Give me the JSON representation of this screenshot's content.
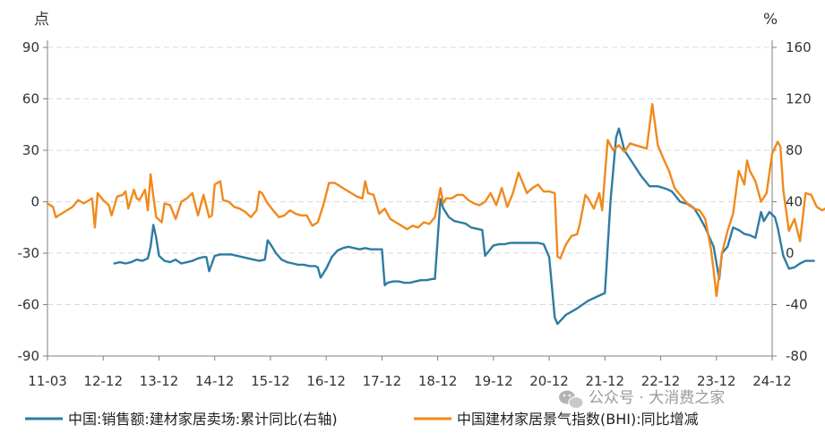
{
  "watermark": "公众号 · 大消费之家",
  "chart_data": {
    "type": "line",
    "left_axis": {
      "unit": "点",
      "ylim": [
        -90,
        90
      ],
      "ticks": [
        90,
        60,
        30,
        0,
        -30,
        -60,
        -90
      ]
    },
    "right_axis": {
      "unit": "%",
      "ylim": [
        -80,
        160
      ],
      "ticks": [
        160,
        120,
        80,
        40,
        0,
        -40,
        -80
      ]
    },
    "x_ticks": [
      "11-03",
      "12-12",
      "13-12",
      "14-12",
      "15-12",
      "16-12",
      "17-12",
      "18-12",
      "19-12",
      "20-12",
      "21-12",
      "22-12",
      "23-12",
      "24-12"
    ],
    "grid": "horizontal dashed",
    "legend_position": "bottom",
    "series": [
      {
        "name": "中国:销售额:建材家居卖场:累计同比(右轴)",
        "axis": "right",
        "color": "#2e7ca3",
        "points": [
          [
            1.2,
            -8
          ],
          [
            1.3,
            -7
          ],
          [
            1.4,
            -8
          ],
          [
            1.5,
            -7
          ],
          [
            1.6,
            -5
          ],
          [
            1.7,
            -6
          ],
          [
            1.8,
            -4
          ],
          [
            1.85,
            5
          ],
          [
            1.9,
            22
          ],
          [
            1.95,
            12
          ],
          [
            2.0,
            -2
          ],
          [
            2.1,
            -6
          ],
          [
            2.2,
            -7
          ],
          [
            2.3,
            -5
          ],
          [
            2.4,
            -8
          ],
          [
            2.5,
            -7
          ],
          [
            2.6,
            -6
          ],
          [
            2.7,
            -4
          ],
          [
            2.8,
            -3
          ],
          [
            2.85,
            -3
          ],
          [
            2.9,
            -14
          ],
          [
            3.0,
            -2
          ],
          [
            3.1,
            -1
          ],
          [
            3.2,
            -1
          ],
          [
            3.3,
            -1
          ],
          [
            3.4,
            -2
          ],
          [
            3.5,
            -3
          ],
          [
            3.6,
            -4
          ],
          [
            3.7,
            -5
          ],
          [
            3.8,
            -6
          ],
          [
            3.9,
            -5
          ],
          [
            3.95,
            10
          ],
          [
            4.0,
            7
          ],
          [
            4.1,
            0
          ],
          [
            4.2,
            -5
          ],
          [
            4.3,
            -7
          ],
          [
            4.4,
            -8
          ],
          [
            4.5,
            -9
          ],
          [
            4.6,
            -9
          ],
          [
            4.7,
            -10
          ],
          [
            4.8,
            -10
          ],
          [
            4.85,
            -11
          ],
          [
            4.9,
            -19
          ],
          [
            5.0,
            -12
          ],
          [
            5.1,
            -3
          ],
          [
            5.2,
            2
          ],
          [
            5.3,
            4
          ],
          [
            5.4,
            5
          ],
          [
            5.5,
            4
          ],
          [
            5.6,
            3
          ],
          [
            5.7,
            4
          ],
          [
            5.8,
            3
          ],
          [
            5.9,
            3
          ],
          [
            6.0,
            3
          ],
          [
            6.05,
            -25
          ],
          [
            6.1,
            -23
          ],
          [
            6.2,
            -22
          ],
          [
            6.3,
            -22
          ],
          [
            6.4,
            -23
          ],
          [
            6.5,
            -23
          ],
          [
            6.6,
            -22
          ],
          [
            6.7,
            -21
          ],
          [
            6.8,
            -21
          ],
          [
            6.9,
            -20
          ],
          [
            6.95,
            -20
          ],
          [
            7.05,
            42
          ],
          [
            7.1,
            35
          ],
          [
            7.2,
            28
          ],
          [
            7.3,
            25
          ],
          [
            7.4,
            24
          ],
          [
            7.5,
            23
          ],
          [
            7.6,
            20
          ],
          [
            7.7,
            19
          ],
          [
            7.8,
            18
          ],
          [
            7.85,
            -2
          ],
          [
            8.0,
            6
          ],
          [
            8.1,
            7
          ],
          [
            8.2,
            7
          ],
          [
            8.3,
            8
          ],
          [
            8.4,
            8
          ],
          [
            8.5,
            8
          ],
          [
            8.6,
            8
          ],
          [
            8.7,
            8
          ],
          [
            8.8,
            8
          ],
          [
            8.9,
            7
          ],
          [
            9.0,
            -3
          ],
          [
            9.1,
            -50
          ],
          [
            9.15,
            -55
          ],
          [
            9.3,
            -48
          ],
          [
            9.5,
            -43
          ],
          [
            9.7,
            -37
          ],
          [
            9.9,
            -33
          ],
          [
            10.0,
            -31
          ],
          [
            10.1,
            40
          ],
          [
            10.2,
            90
          ],
          [
            10.25,
            97
          ],
          [
            10.35,
            80
          ],
          [
            10.5,
            70
          ],
          [
            10.65,
            60
          ],
          [
            10.8,
            52
          ],
          [
            10.95,
            52
          ],
          [
            11.1,
            50
          ],
          [
            11.2,
            48
          ],
          [
            11.35,
            40
          ],
          [
            11.5,
            38
          ],
          [
            11.6,
            35
          ],
          [
            11.7,
            28
          ],
          [
            11.8,
            20
          ],
          [
            11.9,
            10
          ],
          [
            11.95,
            5
          ],
          [
            12.05,
            -20
          ],
          [
            12.1,
            0
          ],
          [
            12.2,
            5
          ],
          [
            12.3,
            20
          ],
          [
            12.4,
            18
          ],
          [
            12.5,
            15
          ],
          [
            12.6,
            14
          ],
          [
            12.7,
            12
          ],
          [
            12.8,
            32
          ],
          [
            12.85,
            25
          ],
          [
            12.95,
            32
          ],
          [
            13.05,
            28
          ],
          [
            13.1,
            20
          ],
          [
            13.2,
            -2
          ],
          [
            13.3,
            -12
          ],
          [
            13.4,
            -11
          ],
          [
            13.5,
            -8
          ],
          [
            13.6,
            -6
          ],
          [
            13.7,
            -6
          ],
          [
            13.75,
            -6
          ]
        ]
      },
      {
        "name": "中国建材家居景气指数(BHI):同比增减",
        "axis": "left",
        "color": "#f08a1c",
        "points": [
          [
            0.0,
            -1
          ],
          [
            0.1,
            -3
          ],
          [
            0.15,
            -9
          ],
          [
            0.25,
            -7
          ],
          [
            0.35,
            -5
          ],
          [
            0.45,
            -3
          ],
          [
            0.55,
            1
          ],
          [
            0.65,
            -1
          ],
          [
            0.75,
            1
          ],
          [
            0.8,
            2
          ],
          [
            0.85,
            -15
          ],
          [
            0.9,
            5
          ],
          [
            1.0,
            1
          ],
          [
            1.1,
            -2
          ],
          [
            1.15,
            -8
          ],
          [
            1.25,
            3
          ],
          [
            1.35,
            4
          ],
          [
            1.4,
            6
          ],
          [
            1.45,
            -4
          ],
          [
            1.55,
            7
          ],
          [
            1.6,
            2
          ],
          [
            1.65,
            1
          ],
          [
            1.75,
            7
          ],
          [
            1.8,
            -5
          ],
          [
            1.85,
            16
          ],
          [
            1.9,
            3
          ],
          [
            1.95,
            -9
          ],
          [
            2.05,
            -12
          ],
          [
            2.1,
            -1
          ],
          [
            2.2,
            -2
          ],
          [
            2.3,
            -10
          ],
          [
            2.4,
            0
          ],
          [
            2.5,
            2
          ],
          [
            2.6,
            5
          ],
          [
            2.7,
            -8
          ],
          [
            2.8,
            4
          ],
          [
            2.9,
            -9
          ],
          [
            2.95,
            -8
          ],
          [
            3.0,
            10
          ],
          [
            3.1,
            12
          ],
          [
            3.15,
            1
          ],
          [
            3.25,
            0
          ],
          [
            3.35,
            -3
          ],
          [
            3.45,
            -4
          ],
          [
            3.55,
            -6
          ],
          [
            3.65,
            -9
          ],
          [
            3.75,
            -5
          ],
          [
            3.8,
            6
          ],
          [
            3.85,
            5
          ],
          [
            3.95,
            -1
          ],
          [
            4.05,
            -5
          ],
          [
            4.15,
            -9
          ],
          [
            4.25,
            -8
          ],
          [
            4.35,
            -5
          ],
          [
            4.45,
            -7
          ],
          [
            4.55,
            -8
          ],
          [
            4.65,
            -8
          ],
          [
            4.75,
            -14
          ],
          [
            4.85,
            -12
          ],
          [
            4.95,
            -2
          ],
          [
            5.05,
            11
          ],
          [
            5.15,
            11
          ],
          [
            5.25,
            9
          ],
          [
            5.35,
            7
          ],
          [
            5.45,
            5
          ],
          [
            5.55,
            3
          ],
          [
            5.65,
            2
          ],
          [
            5.7,
            12
          ],
          [
            5.75,
            5
          ],
          [
            5.85,
            4
          ],
          [
            5.95,
            -7
          ],
          [
            6.05,
            -4
          ],
          [
            6.15,
            -10
          ],
          [
            6.25,
            -12
          ],
          [
            6.35,
            -14
          ],
          [
            6.45,
            -16
          ],
          [
            6.55,
            -14
          ],
          [
            6.65,
            -15
          ],
          [
            6.75,
            -12
          ],
          [
            6.85,
            -13
          ],
          [
            6.95,
            -9
          ],
          [
            7.05,
            8
          ],
          [
            7.1,
            -1
          ],
          [
            7.15,
            2
          ],
          [
            7.25,
            2
          ],
          [
            7.35,
            4
          ],
          [
            7.45,
            4
          ],
          [
            7.55,
            1
          ],
          [
            7.65,
            -1
          ],
          [
            7.75,
            -2
          ],
          [
            7.85,
            0
          ],
          [
            7.95,
            5
          ],
          [
            8.05,
            -2
          ],
          [
            8.15,
            8
          ],
          [
            8.25,
            -3
          ],
          [
            8.35,
            5
          ],
          [
            8.45,
            17
          ],
          [
            8.55,
            9
          ],
          [
            8.6,
            5
          ],
          [
            8.7,
            8
          ],
          [
            8.8,
            10
          ],
          [
            8.9,
            6
          ],
          [
            9.0,
            6
          ],
          [
            9.1,
            5
          ],
          [
            9.15,
            -32
          ],
          [
            9.2,
            -33
          ],
          [
            9.3,
            -25
          ],
          [
            9.4,
            -20
          ],
          [
            9.5,
            -19
          ],
          [
            9.55,
            -13
          ],
          [
            9.65,
            4
          ],
          [
            9.7,
            2
          ],
          [
            9.8,
            -4
          ],
          [
            9.9,
            5
          ],
          [
            9.95,
            -5
          ],
          [
            10.05,
            36
          ],
          [
            10.15,
            30
          ],
          [
            10.25,
            33
          ],
          [
            10.35,
            29
          ],
          [
            10.45,
            34
          ],
          [
            10.55,
            33
          ],
          [
            10.65,
            32
          ],
          [
            10.75,
            31
          ],
          [
            10.85,
            57
          ],
          [
            10.95,
            33
          ],
          [
            11.05,
            25
          ],
          [
            11.15,
            18
          ],
          [
            11.25,
            8
          ],
          [
            11.35,
            4
          ],
          [
            11.5,
            -2
          ],
          [
            11.6,
            -4
          ],
          [
            11.7,
            -5
          ],
          [
            11.8,
            -10
          ],
          [
            11.9,
            -27
          ],
          [
            11.95,
            -40
          ],
          [
            12.0,
            -55
          ],
          [
            12.1,
            -30
          ],
          [
            12.2,
            -17
          ],
          [
            12.3,
            -7
          ],
          [
            12.4,
            18
          ],
          [
            12.5,
            10
          ],
          [
            12.55,
            24
          ],
          [
            12.6,
            18
          ],
          [
            12.7,
            12
          ],
          [
            12.8,
            0
          ],
          [
            12.9,
            5
          ],
          [
            13.0,
            28
          ],
          [
            13.1,
            35
          ],
          [
            13.15,
            32
          ],
          [
            13.2,
            7
          ],
          [
            13.3,
            -17
          ],
          [
            13.4,
            -10
          ],
          [
            13.5,
            -23
          ],
          [
            13.6,
            5
          ],
          [
            13.7,
            4
          ],
          [
            13.8,
            -3
          ],
          [
            13.9,
            -5
          ],
          [
            14.0,
            -3
          ],
          [
            14.05,
            -5
          ]
        ]
      }
    ]
  }
}
